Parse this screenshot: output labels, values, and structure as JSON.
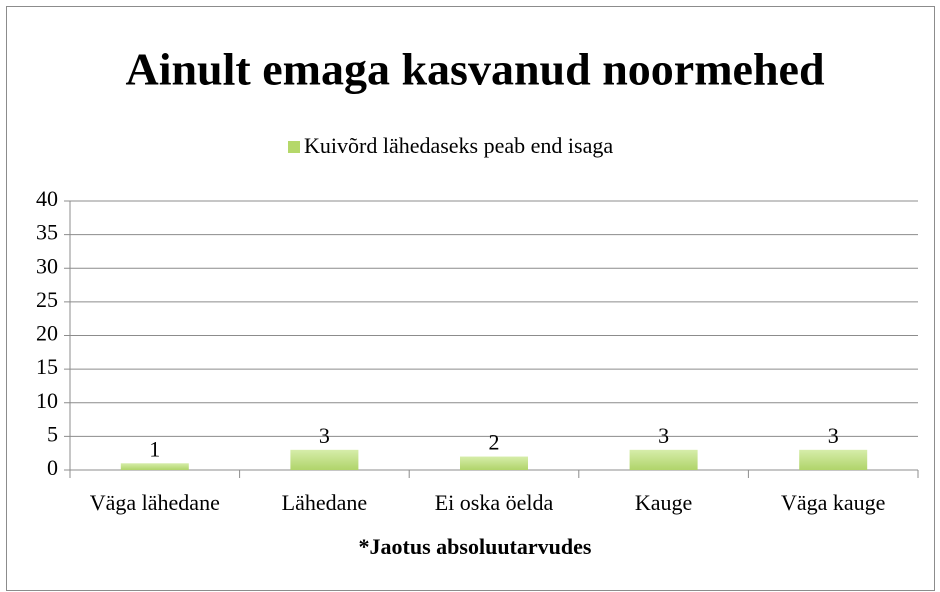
{
  "chart_data": {
    "type": "bar",
    "title": "Ainult emaga kasvanud noormehed",
    "x_label": "*Jaotus absoluutarvudes",
    "categories": [
      "Väga lähedane",
      "Lähedane",
      "Ei oska öelda",
      "Kauge",
      "Väga kauge"
    ],
    "series": [
      {
        "name": "Kuivõrd lähedaseks peab end isaga",
        "color": "#b5d86a",
        "values": [
          1,
          3,
          2,
          3,
          3
        ]
      }
    ],
    "ylim": [
      0,
      40
    ],
    "yticks": [
      0,
      5,
      10,
      15,
      20,
      25,
      30,
      35,
      40
    ],
    "grid": true,
    "legend": "top",
    "data_labels": true
  }
}
